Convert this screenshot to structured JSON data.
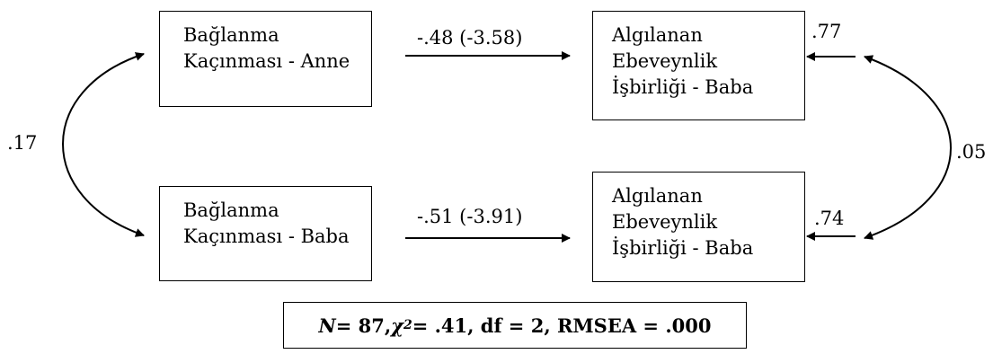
{
  "boxes": {
    "bagl_anne": [
      "Bağlanma",
      "Kaçınması - Anne"
    ],
    "bagl_baba": [
      "Bağlanma",
      "Kaçınması - Baba"
    ],
    "outcome_top": [
      "Algılanan",
      "Ebeveynlik",
      "İşbirliği - Baba"
    ],
    "outcome_bot": [
      "Algılanan",
      "Ebeveynlik",
      "İşbirliği - Baba"
    ]
  },
  "paths": {
    "top_coef": "-.48 (-3.58)",
    "bottom_coef": "-.51 (-3.91)"
  },
  "covariances": {
    "left": ".17",
    "right": ".05"
  },
  "errors": {
    "top": ".77",
    "bottom": ".74"
  },
  "fit": {
    "n_label": "N",
    "n_value": " = 87, ",
    "chi_label": "χ",
    "chi_sup": "2",
    "rest": "= .41, df = 2, RMSEA = .000"
  }
}
